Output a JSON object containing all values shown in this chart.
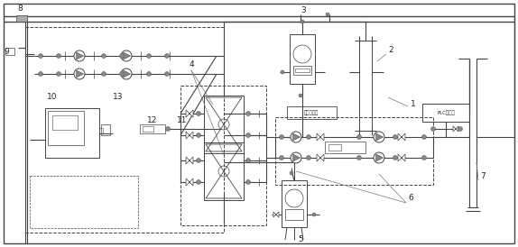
{
  "bg_color": "#ffffff",
  "line_color": "#444444",
  "label_color": "#222222",
  "label_fontsize": 6.5,
  "fig_width": 5.74,
  "fig_height": 2.74,
  "dpi": 100
}
